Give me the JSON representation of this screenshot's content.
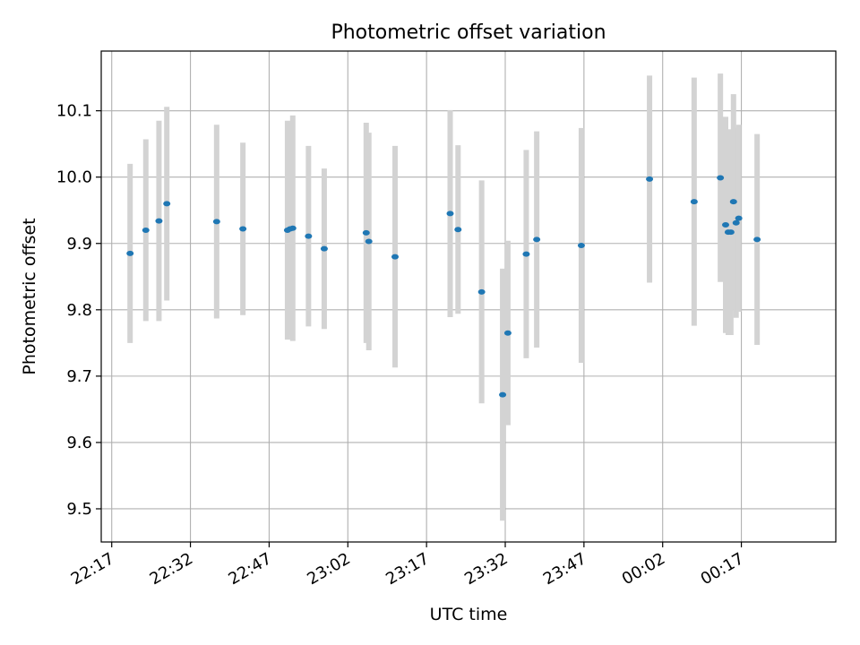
{
  "chart_data": {
    "type": "scatter",
    "title": "Photometric offset variation",
    "xlabel": "UTC time",
    "ylabel": "Photometric offset",
    "grid": true,
    "xlim": [
      "22:15",
      "00:35"
    ],
    "ylim": [
      9.45,
      10.19
    ],
    "x_ticks": [
      "22:17",
      "22:32",
      "22:47",
      "23:02",
      "23:17",
      "23:32",
      "23:47",
      "00:02",
      "00:17"
    ],
    "y_ticks": [
      "9.5",
      "9.6",
      "9.7",
      "9.8",
      "9.9",
      "10.0",
      "10.1"
    ],
    "colors": {
      "point": "#1f77b4",
      "errorbar": "#d3d3d3",
      "grid": "#b0b0b0"
    },
    "series": [
      {
        "points": [
          {
            "x": "22:20:30",
            "y": 9.885,
            "yerr": 0.135
          },
          {
            "x": "22:23:30",
            "y": 9.92,
            "yerr": 0.137
          },
          {
            "x": "22:26:00",
            "y": 9.934,
            "yerr": 0.151
          },
          {
            "x": "22:27:30",
            "y": 9.96,
            "yerr": 0.146
          },
          {
            "x": "22:37:00",
            "y": 9.933,
            "yerr": 0.146
          },
          {
            "x": "22:42:00",
            "y": 9.922,
            "yerr": 0.13
          },
          {
            "x": "22:50:30",
            "y": 9.92,
            "yerr": 0.165
          },
          {
            "x": "22:51:00",
            "y": 9.922,
            "yerr": 0.16
          },
          {
            "x": "22:51:30",
            "y": 9.923,
            "yerr": 0.17
          },
          {
            "x": "22:54:30",
            "y": 9.911,
            "yerr": 0.136
          },
          {
            "x": "22:57:30",
            "y": 9.892,
            "yerr": 0.121
          },
          {
            "x": "23:05:30",
            "y": 9.916,
            "yerr": 0.166
          },
          {
            "x": "23:06:00",
            "y": 9.903,
            "yerr": 0.164
          },
          {
            "x": "23:11:00",
            "y": 9.88,
            "yerr": 0.167
          },
          {
            "x": "23:21:30",
            "y": 9.945,
            "yerr": 0.156
          },
          {
            "x": "23:23:00",
            "y": 9.921,
            "yerr": 0.127
          },
          {
            "x": "23:27:30",
            "y": 9.827,
            "yerr": 0.168
          },
          {
            "x": "23:31:30",
            "y": 9.672,
            "yerr": 0.19
          },
          {
            "x": "23:32:30",
            "y": 9.765,
            "yerr": 0.139
          },
          {
            "x": "23:36:00",
            "y": 9.884,
            "yerr": 0.157
          },
          {
            "x": "23:38:00",
            "y": 9.906,
            "yerr": 0.163
          },
          {
            "x": "23:46:30",
            "y": 9.897,
            "yerr": 0.177
          },
          {
            "x": "23:59:30",
            "y": 9.997,
            "yerr": 0.156
          },
          {
            "x": "00:08:00",
            "y": 9.963,
            "yerr": 0.187
          },
          {
            "x": "00:13:00",
            "y": 9.999,
            "yerr": 0.157
          },
          {
            "x": "00:14:00",
            "y": 9.928,
            "yerr": 0.163
          },
          {
            "x": "00:14:30",
            "y": 9.917,
            "yerr": 0.155
          },
          {
            "x": "00:15:00",
            "y": 9.917,
            "yerr": 0.155
          },
          {
            "x": "00:15:30",
            "y": 9.963,
            "yerr": 0.162
          },
          {
            "x": "00:16:00",
            "y": 9.931,
            "yerr": 0.143
          },
          {
            "x": "00:16:30",
            "y": 9.938,
            "yerr": 0.141
          },
          {
            "x": "00:20:00",
            "y": 9.906,
            "yerr": 0.159
          }
        ]
      }
    ]
  }
}
